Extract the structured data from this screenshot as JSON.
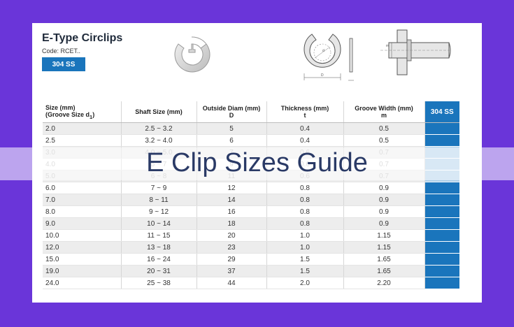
{
  "header": {
    "title": "E-Type Circlips",
    "code": "Code: RCET..",
    "material_badge": "304 SS"
  },
  "diagram_labels": {
    "groove_letter": "d",
    "outer_letter": "D",
    "shaft_letter": "m"
  },
  "table": {
    "headers": {
      "size_line1": "Size (mm)",
      "size_line2": "(Groove Size d",
      "size_sub": "1",
      "size_close": ")",
      "shaft": "Shaft Size (mm)",
      "od_line1": "Outside Diam (mm)",
      "od_line2": "D",
      "thk_line1": "Thickness (mm)",
      "thk_line2": "t",
      "gw_line1": "Groove Width (mm)",
      "gw_line2": "m",
      "ss": "304 SS"
    },
    "rows": [
      {
        "size": "2.0",
        "shaft": "2.5 ~ 3.2",
        "od": "5",
        "thk": "0.4",
        "gw": "0.5"
      },
      {
        "size": "2.5",
        "shaft": "3.2 ~ 4.0",
        "od": "6",
        "thk": "0.4",
        "gw": "0.5"
      },
      {
        "size": "3.0",
        "shaft": "4.0 ~ 5.0",
        "od": "7",
        "thk": "0.6",
        "gw": "0.7"
      },
      {
        "size": "4.0",
        "shaft": "5 ~ 7",
        "od": "9",
        "thk": "0.6",
        "gw": "0.7"
      },
      {
        "size": "5.0",
        "shaft": "6 ~ 8",
        "od": "11",
        "thk": "0.6",
        "gw": "0.7"
      },
      {
        "size": "6.0",
        "shaft": "7 ~ 9",
        "od": "12",
        "thk": "0.8",
        "gw": "0.9"
      },
      {
        "size": "7.0",
        "shaft": "8 ~ 11",
        "od": "14",
        "thk": "0.8",
        "gw": "0.9"
      },
      {
        "size": "8.0",
        "shaft": "9 ~ 12",
        "od": "16",
        "thk": "0.8",
        "gw": "0.9"
      },
      {
        "size": "9.0",
        "shaft": "10 ~ 14",
        "od": "18",
        "thk": "0.8",
        "gw": "0.9"
      },
      {
        "size": "10.0",
        "shaft": "11 ~ 15",
        "od": "20",
        "thk": "1.0",
        "gw": "1.15"
      },
      {
        "size": "12.0",
        "shaft": "13 ~ 18",
        "od": "23",
        "thk": "1.0",
        "gw": "1.15"
      },
      {
        "size": "15.0",
        "shaft": "16 ~ 24",
        "od": "29",
        "thk": "1.5",
        "gw": "1.65"
      },
      {
        "size": "19.0",
        "shaft": "20 ~ 31",
        "od": "37",
        "thk": "1.5",
        "gw": "1.65"
      },
      {
        "size": "24.0",
        "shaft": "25 ~ 38",
        "od": "44",
        "thk": "2.0",
        "gw": "2.20"
      }
    ]
  },
  "overlay": {
    "title": "E Clip Sizes Guide"
  },
  "colors": {
    "background": "#6a35d9",
    "accent": "#1a75bc"
  }
}
